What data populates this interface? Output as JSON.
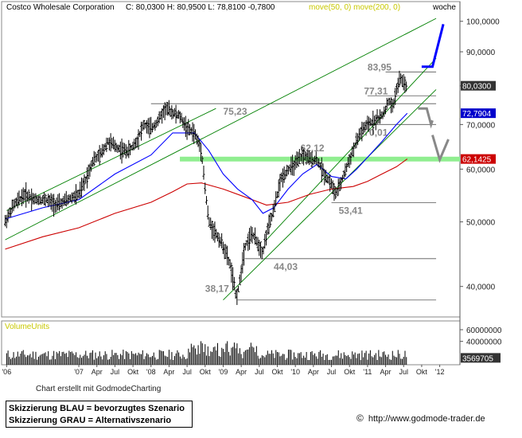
{
  "header": {
    "title": "Costco Wholesale Corporation",
    "ohlc": "C: 80,0300  H: 80,9500  L: 78,8100  -0,7800",
    "ma_label": "move(50, 0) move(200, 0)",
    "period": "woche"
  },
  "footer": {
    "credit": "Chart erstellt mit GodmodeCharting",
    "legend_blue": "Skizzierung BLAU = bevorzugtes Szenario",
    "legend_grey": "Skizzierung GRAU = Alternativszenario",
    "copyright": "©",
    "url": "http://www.godmode-trader.de"
  },
  "colors": {
    "price": "#000000",
    "ma50": "#0000ff",
    "ma200": "#cc0000",
    "channel": "#008000",
    "support_zone": "#90ee90",
    "blue_scenario": "#0000ff",
    "grey_scenario": "#888888",
    "volume_label": "#c8c800"
  },
  "chart_data": {
    "type": "line",
    "title": "Costco Wholesale Corporation",
    "y_scale": "log",
    "ylim": [
      36,
      103
    ],
    "yticks": [
      "100,0000",
      "90,0000",
      "80,0000",
      "70,0000",
      "60,0000",
      "50,0000",
      "40,0000"
    ],
    "ytick_values": [
      100,
      90,
      80,
      70,
      60,
      50,
      40
    ],
    "xticks": [
      "'06",
      "'07",
      "Apr",
      "Jul",
      "Okt",
      "'08",
      "Apr",
      "Jul",
      "Okt",
      "'09",
      "Apr",
      "Jul",
      "Okt",
      "'10",
      "Apr",
      "Jul",
      "Okt",
      "'11",
      "Apr",
      "Jul",
      "Okt",
      "'12"
    ],
    "xtick_values": [
      2006.0,
      2007.0,
      2007.25,
      2007.5,
      2007.75,
      2008.0,
      2008.25,
      2008.5,
      2008.75,
      2009.0,
      2009.25,
      2009.5,
      2009.75,
      2010.0,
      2010.25,
      2010.5,
      2010.75,
      2011.0,
      2011.25,
      2011.5,
      2011.75,
      2012.0
    ],
    "series": [
      {
        "x": [
          2005.98,
          2006.1,
          2006.25,
          2006.4,
          2006.55,
          2006.7,
          2006.85,
          2007.0,
          2007.1,
          2007.2,
          2007.3,
          2007.4,
          2007.5,
          2007.6,
          2007.7,
          2007.8,
          2007.9,
          2008.0,
          2008.1,
          2008.2,
          2008.3,
          2008.4,
          2008.5,
          2008.6,
          2008.7,
          2008.75,
          2008.8,
          2008.9,
          2009.0,
          2009.1,
          2009.18,
          2009.22,
          2009.3,
          2009.4,
          2009.5,
          2009.55,
          2009.6,
          2009.7,
          2009.8,
          2009.9,
          2010.0,
          2010.1,
          2010.2,
          2010.3,
          2010.4,
          2010.5,
          2010.55,
          2010.6,
          2010.7,
          2010.8,
          2010.9,
          2011.0,
          2011.1,
          2011.2,
          2011.3,
          2011.35,
          2011.4,
          2011.45,
          2011.5,
          2011.55
        ],
        "values": [
          50,
          53,
          55,
          54,
          54,
          53,
          54,
          55,
          58,
          62,
          63,
          66,
          65,
          64,
          64,
          66,
          70,
          69,
          71,
          74,
          73,
          72,
          69,
          68,
          64,
          56,
          50,
          48,
          46,
          43,
          38.5,
          40,
          46,
          48,
          46,
          45,
          48,
          52,
          58,
          60,
          61,
          63,
          62,
          62,
          59,
          57,
          55,
          56,
          60,
          64,
          68,
          70,
          71,
          72,
          76,
          74,
          79,
          82,
          81,
          80
        ]
      },
      {
        "name": "move(50, 0)",
        "x": [
          2005.98,
          2006.5,
          2007.0,
          2007.5,
          2008.0,
          2008.3,
          2008.6,
          2008.8,
          2009.0,
          2009.2,
          2009.4,
          2009.55,
          2009.7,
          2009.9,
          2010.1,
          2010.3,
          2010.5,
          2010.7,
          2010.85,
          2011.0,
          2011.2,
          2011.4,
          2011.55
        ],
        "values": [
          50.5,
          52.5,
          54,
          59,
          63,
          68,
          68,
          64,
          59,
          56,
          54,
          51.5,
          52.5,
          56,
          59,
          61,
          58.5,
          58,
          60,
          62.5,
          66,
          70,
          72.79
        ]
      },
      {
        "name": "move(200, 0)",
        "x": [
          2005.98,
          2006.5,
          2007.0,
          2007.5,
          2008.0,
          2008.3,
          2008.5,
          2008.7,
          2009.0,
          2009.3,
          2009.6,
          2009.9,
          2010.2,
          2010.5,
          2010.8,
          2011.0,
          2011.2,
          2011.4,
          2011.55
        ],
        "values": [
          45.5,
          47.5,
          49,
          51.5,
          53.5,
          55.5,
          57,
          57.2,
          56,
          54.5,
          53,
          53.5,
          55,
          56,
          56.5,
          57.5,
          59,
          60.5,
          62.14
        ]
      }
    ],
    "levels": [
      {
        "label": "83,95",
        "value": 83.95
      },
      {
        "label": "77,31",
        "value": 77.31
      },
      {
        "label": "75,23",
        "value": 75.23
      },
      {
        "label": "70,01",
        "value": 70.01
      },
      {
        "label": "62,12",
        "value": 62.12
      },
      {
        "label": "53,41",
        "value": 53.41
      },
      {
        "label": "44,03",
        "value": 44.03
      },
      {
        "label": "38,17",
        "value": 38.17
      }
    ],
    "price_tags": [
      {
        "label": "80,0300",
        "value": 80.03,
        "color": "#333333"
      },
      {
        "label": "72,7904",
        "value": 72.79,
        "color": "#0000cc"
      },
      {
        "label": "62,1425",
        "value": 62.14,
        "color": "#cc0000"
      }
    ],
    "volume": {
      "label": "VolumeUnits",
      "yticks": [
        "60000000",
        "40000000"
      ],
      "ytick_values": [
        60000000,
        40000000
      ],
      "last_label": "3569705",
      "last_value": 3569705
    }
  }
}
